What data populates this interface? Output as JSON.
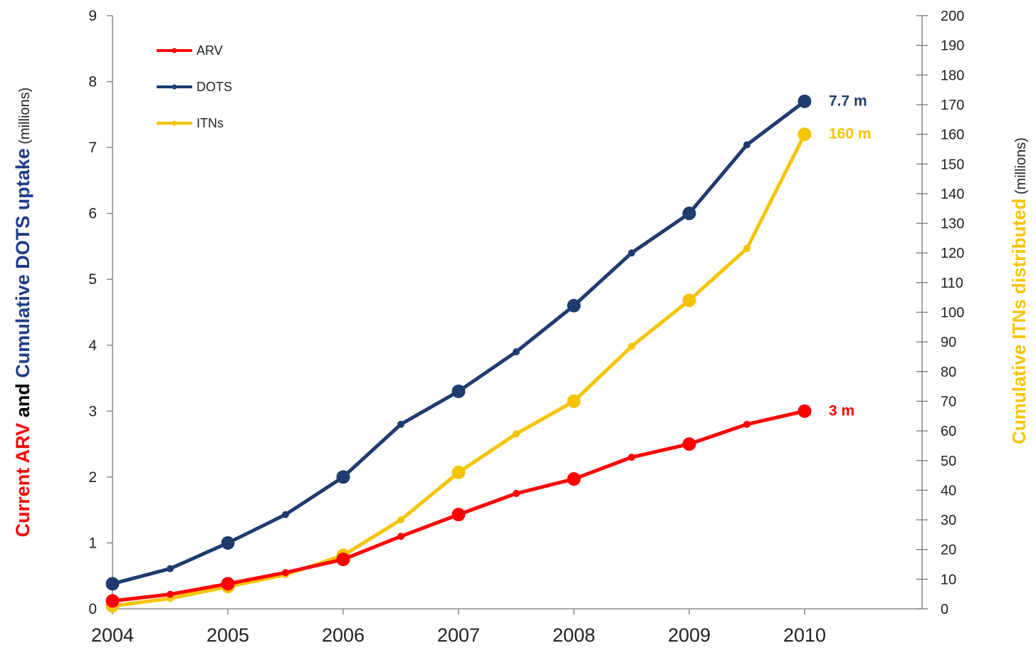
{
  "chart_data": {
    "type": "line",
    "x": [
      2004,
      2004.5,
      2005,
      2005.5,
      2006,
      2006.5,
      2007,
      2007.5,
      2008,
      2008.5,
      2009,
      2009.5,
      2010
    ],
    "x_ticks": [
      "2004",
      "2005",
      "2006",
      "2007",
      "2008",
      "2009",
      "2010"
    ],
    "xlim": [
      2004,
      2011
    ],
    "left_axis": {
      "label_parts": [
        {
          "text": "Current ARV",
          "color": "#ff0000"
        },
        {
          "text": " and ",
          "color": "#000000"
        },
        {
          "text": "Cumulative DOTS uptake",
          "color": "#1f3c88"
        },
        {
          "text": " (millions)",
          "color": "#222222"
        }
      ],
      "ylim": [
        0,
        9
      ],
      "ticks": [
        "0",
        "1",
        "2",
        "3",
        "4",
        "5",
        "6",
        "7",
        "8",
        "9"
      ]
    },
    "right_axis": {
      "label_parts": [
        {
          "text": "Cumulative ITNs distributed",
          "color": "#f5c400"
        },
        {
          "text": " (millions)",
          "color": "#222222"
        }
      ],
      "ylim": [
        0,
        200
      ],
      "ticks": [
        "0",
        "10",
        "20",
        "30",
        "40",
        "50",
        "60",
        "70",
        "80",
        "90",
        "100",
        "110",
        "120",
        "130",
        "140",
        "150",
        "160",
        "170",
        "180",
        "190",
        "200"
      ]
    },
    "series": [
      {
        "name": "ARV",
        "axis": "left",
        "color": "#ff0000",
        "values": [
          0.12,
          0.22,
          0.38,
          0.55,
          0.75,
          1.1,
          1.43,
          1.75,
          1.97,
          2.3,
          2.5,
          2.8,
          3.0
        ],
        "end_label": "3 m"
      },
      {
        "name": "DOTS",
        "axis": "left",
        "color": "#1f3c70",
        "values": [
          0.38,
          0.61,
          1.0,
          1.43,
          2.0,
          2.8,
          3.3,
          3.9,
          4.6,
          5.4,
          6.0,
          7.04,
          7.7
        ],
        "end_label": "7.7 m"
      },
      {
        "name": "ITNs",
        "axis": "right",
        "color": "#f5c400",
        "values": [
          1,
          3.5,
          7.5,
          11.5,
          18,
          30,
          46,
          59,
          70,
          88.5,
          104,
          121.5,
          160
        ],
        "end_label": "160 m"
      }
    ],
    "legend": {
      "placement": "top-left"
    },
    "grid": false
  }
}
